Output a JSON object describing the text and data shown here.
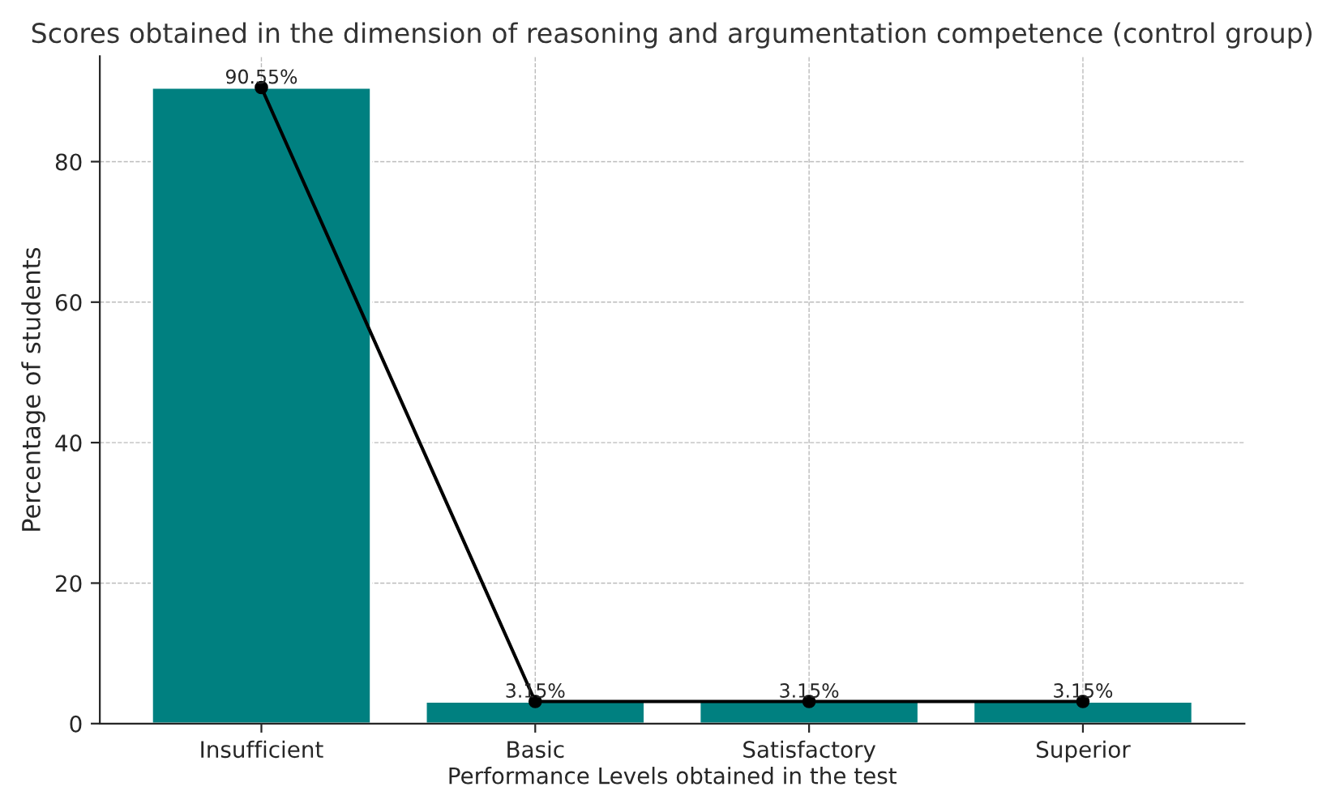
{
  "chart_data": {
    "type": "bar",
    "title": "Scores obtained in the dimension of reasoning and argumentation competence (control group)",
    "xlabel": "Performance Levels obtained in the test",
    "ylabel": "Percentage of students",
    "categories": [
      "Insufficient",
      "Basic",
      "Satisfactory",
      "Superior"
    ],
    "series": [
      {
        "color": "#008080",
        "values": [
          90.55,
          3.15,
          3.15,
          3.15
        ]
      },
      {
        "type": "line",
        "color": "#000000",
        "marker": "circle",
        "line_style": "solid",
        "values": [
          90.55,
          3.15,
          3.15,
          3.15
        ],
        "value_labels": [
          "90.55%",
          "3.15%",
          "3.15%",
          "3.15%"
        ]
      }
    ],
    "ylim": [
      0,
      95
    ],
    "yticks": [
      0,
      20,
      40,
      60,
      80
    ],
    "grid": true
  }
}
